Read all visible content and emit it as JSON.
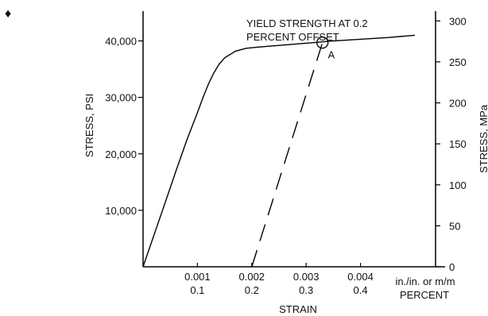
{
  "marker_symbol": "♦",
  "chart_data": {
    "type": "line",
    "title": "",
    "xlabel": "STRAIN",
    "ylabel_left": "STRESS, PSI",
    "ylabel_right": "STRESS, MPa",
    "x_unit_label": [
      "in./in. or m/m",
      "PERCENT"
    ],
    "x_ticks": [
      {
        "value": 0.001,
        "label": "0.001",
        "percent_label": "0.1"
      },
      {
        "value": 0.002,
        "label": "0.002",
        "percent_label": "0.2"
      },
      {
        "value": 0.003,
        "label": "0.003",
        "percent_label": "0.3"
      },
      {
        "value": 0.004,
        "label": "0.004",
        "percent_label": "0.4"
      }
    ],
    "y_left_ticks": [
      {
        "value": 10000,
        "label": "10,000"
      },
      {
        "value": 20000,
        "label": "20,000"
      },
      {
        "value": 30000,
        "label": "30,000"
      },
      {
        "value": 40000,
        "label": "40,000"
      }
    ],
    "y_right_ticks": [
      {
        "value": 0,
        "label": "0"
      },
      {
        "value": 50,
        "label": "50"
      },
      {
        "value": 100,
        "label": "100"
      },
      {
        "value": 150,
        "label": "150"
      },
      {
        "value": 200,
        "label": "200"
      },
      {
        "value": 250,
        "label": "250"
      },
      {
        "value": 300,
        "label": "300"
      }
    ],
    "xlim": [
      0,
      0.0056
    ],
    "ylim_left": [
      0,
      45000
    ],
    "ylim_right_mpa": [
      0,
      310
    ],
    "series": [
      {
        "style": "solid",
        "x": [
          0,
          0.0002,
          0.0004,
          0.0006,
          0.0008,
          0.001,
          0.0011,
          0.0012,
          0.0013,
          0.0014,
          0.0015,
          0.0017,
          0.0019,
          0.0021,
          0.0025,
          0.003,
          0.0035,
          0.004,
          0.0045,
          0.005
        ],
        "y": [
          0,
          5600,
          11200,
          16800,
          22300,
          27300,
          29900,
          32300,
          34300,
          35900,
          37000,
          38200,
          38700,
          38900,
          39200,
          39600,
          40000,
          40300,
          40600,
          41000
        ]
      },
      {
        "style": "dashed",
        "x": [
          0.002,
          0.0033
        ],
        "y": [
          0,
          39700
        ]
      }
    ],
    "annotations": [
      {
        "text_lines": [
          "YIELD STRENGTH AT 0.2",
          "PERCENT OFFSET"
        ],
        "x": 0.0019,
        "y": 42500
      },
      {
        "text": "A",
        "x": 0.0034,
        "y": 38900
      }
    ],
    "highlight_point": {
      "x": 0.0033,
      "y": 39700
    },
    "grid": false
  }
}
